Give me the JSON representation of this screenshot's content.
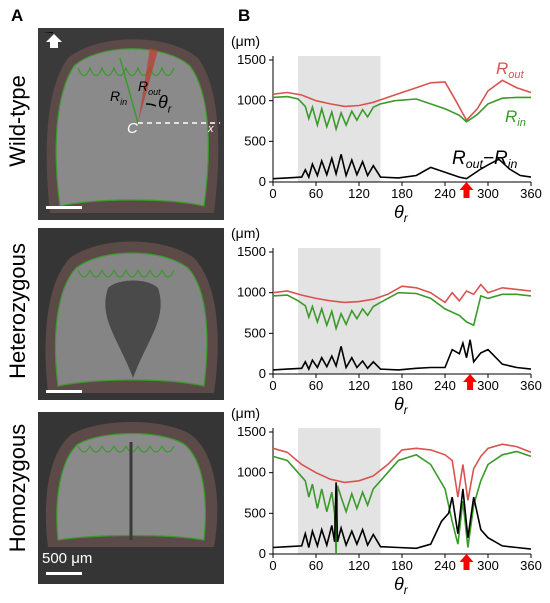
{
  "panel_labels": {
    "a": "A",
    "b": "B"
  },
  "rows": [
    {
      "label": "Wild-type"
    },
    {
      "label": "Heterozygous"
    },
    {
      "label": "Homozygous"
    }
  ],
  "image_annotations": {
    "r_out": "R",
    "r_out_sub": "out",
    "r_in": "R",
    "r_in_sub": "in",
    "theta": "θ",
    "theta_sub": "r",
    "center": "C",
    "x_axis": "x",
    "scale_bar": "500 μm"
  },
  "colors": {
    "r_out": "#d9534f",
    "r_in": "#3a9a2a",
    "diff": "#000000",
    "shade": "#e3e3e3",
    "arrow": "#ff0000"
  },
  "chart_data": [
    {
      "type": "line",
      "title": "Wild-type",
      "ylabel": "(μm)",
      "xlabel": "θr",
      "xlim": [
        0,
        360
      ],
      "ylim": [
        0,
        1500
      ],
      "xticks": [
        0,
        60,
        120,
        180,
        240,
        300,
        360
      ],
      "yticks": [
        0,
        500,
        1000,
        1500
      ],
      "shaded_region": [
        35,
        150
      ],
      "arrow_x": 270,
      "series_labels": {
        "r_out": "Rout",
        "r_in": "Rin",
        "diff": "Rout−Rin"
      },
      "series": [
        {
          "name": "Rout",
          "x": [
            0,
            20,
            40,
            60,
            80,
            100,
            120,
            140,
            160,
            180,
            200,
            220,
            240,
            255,
            270,
            285,
            300,
            320,
            340,
            360
          ],
          "values": [
            1080,
            1100,
            1070,
            1000,
            960,
            930,
            940,
            980,
            1040,
            1100,
            1160,
            1220,
            1230,
            1000,
            760,
            900,
            1120,
            1250,
            1160,
            1100
          ]
        },
        {
          "name": "Rin",
          "x": [
            0,
            20,
            35,
            45,
            50,
            55,
            62,
            68,
            75,
            82,
            88,
            95,
            102,
            110,
            117,
            125,
            132,
            140,
            150,
            170,
            200,
            240,
            260,
            270,
            285,
            300,
            320,
            340,
            360
          ],
          "values": [
            1040,
            1050,
            1020,
            930,
            780,
            920,
            700,
            900,
            680,
            860,
            650,
            850,
            700,
            870,
            760,
            890,
            800,
            920,
            960,
            1000,
            1020,
            900,
            820,
            740,
            830,
            960,
            1030,
            1040,
            1040
          ]
        },
        {
          "name": "Rout−Rin",
          "x": [
            0,
            20,
            40,
            45,
            50,
            55,
            62,
            68,
            75,
            82,
            88,
            95,
            102,
            110,
            117,
            125,
            132,
            140,
            150,
            175,
            200,
            220,
            240,
            260,
            270,
            290,
            300,
            315,
            330,
            345,
            360
          ],
          "values": [
            40,
            50,
            60,
            150,
            60,
            220,
            80,
            260,
            90,
            290,
            100,
            340,
            80,
            270,
            90,
            250,
            80,
            200,
            60,
            50,
            80,
            180,
            120,
            60,
            40,
            160,
            210,
            280,
            160,
            80,
            60
          ]
        }
      ]
    },
    {
      "type": "line",
      "title": "Heterozygous",
      "ylabel": "(μm)",
      "xlabel": "θr",
      "xlim": [
        0,
        360
      ],
      "ylim": [
        0,
        1500
      ],
      "xticks": [
        0,
        60,
        120,
        180,
        240,
        300,
        360
      ],
      "yticks": [
        0,
        500,
        1000,
        1500
      ],
      "shaded_region": [
        35,
        150
      ],
      "arrow_x": 275,
      "series": [
        {
          "name": "Rout",
          "x": [
            0,
            20,
            40,
            60,
            80,
            100,
            120,
            140,
            160,
            180,
            200,
            220,
            240,
            250,
            260,
            270,
            280,
            290,
            300,
            320,
            340,
            360
          ],
          "values": [
            1000,
            1020,
            970,
            930,
            900,
            880,
            890,
            920,
            980,
            1080,
            1060,
            1000,
            880,
            1000,
            900,
            1020,
            980,
            1100,
            1000,
            1060,
            1040,
            1020
          ]
        },
        {
          "name": "Rin",
          "x": [
            0,
            20,
            35,
            45,
            50,
            55,
            62,
            68,
            75,
            82,
            88,
            95,
            102,
            110,
            117,
            125,
            132,
            140,
            150,
            175,
            200,
            220,
            240,
            260,
            270,
            280,
            290,
            300,
            320,
            340,
            360
          ],
          "values": [
            960,
            970,
            900,
            840,
            700,
            830,
            640,
            800,
            600,
            770,
            560,
            740,
            610,
            780,
            680,
            800,
            720,
            830,
            880,
            1000,
            990,
            930,
            800,
            720,
            640,
            600,
            960,
            930,
            980,
            980,
            960
          ]
        },
        {
          "name": "Rout−Rin",
          "x": [
            0,
            20,
            40,
            45,
            50,
            55,
            62,
            68,
            75,
            82,
            88,
            95,
            102,
            110,
            117,
            125,
            132,
            140,
            150,
            175,
            200,
            220,
            240,
            250,
            260,
            265,
            270,
            275,
            280,
            290,
            300,
            320,
            340,
            360
          ],
          "values": [
            50,
            60,
            70,
            150,
            60,
            170,
            80,
            200,
            90,
            220,
            100,
            340,
            80,
            200,
            80,
            160,
            70,
            150,
            60,
            50,
            70,
            80,
            80,
            300,
            250,
            380,
            200,
            420,
            150,
            260,
            300,
            120,
            80,
            60
          ]
        }
      ]
    },
    {
      "type": "line",
      "title": "Homozygous",
      "ylabel": "(μm)",
      "xlabel": "θr",
      "xlim": [
        0,
        360
      ],
      "ylim": [
        0,
        1500
      ],
      "xticks": [
        0,
        60,
        120,
        180,
        240,
        300,
        360
      ],
      "yticks": [
        0,
        500,
        1000,
        1500
      ],
      "shaded_region": [
        35,
        150
      ],
      "arrow_x": 270,
      "series": [
        {
          "name": "Rout",
          "x": [
            0,
            20,
            40,
            60,
            80,
            100,
            120,
            140,
            160,
            180,
            200,
            220,
            240,
            250,
            258,
            265,
            272,
            280,
            290,
            300,
            320,
            340,
            360
          ],
          "values": [
            1300,
            1250,
            1100,
            1000,
            920,
            880,
            900,
            960,
            1100,
            1280,
            1300,
            1280,
            1220,
            1150,
            700,
            1100,
            660,
            1050,
            1200,
            1300,
            1350,
            1320,
            1250
          ]
        },
        {
          "name": "Rin",
          "x": [
            0,
            20,
            35,
            45,
            50,
            55,
            62,
            68,
            75,
            82,
            86,
            88,
            90,
            95,
            102,
            110,
            117,
            125,
            132,
            140,
            150,
            175,
            200,
            220,
            240,
            250,
            258,
            265,
            272,
            280,
            290,
            300,
            320,
            340,
            360
          ],
          "values": [
            1200,
            1150,
            1000,
            900,
            700,
            860,
            560,
            800,
            520,
            760,
            500,
            0,
            840,
            700,
            520,
            740,
            560,
            760,
            600,
            800,
            900,
            1150,
            1220,
            1100,
            800,
            400,
            120,
            650,
            80,
            600,
            900,
            1100,
            1220,
            1260,
            1200
          ]
        },
        {
          "name": "Rout−Rin",
          "x": [
            0,
            20,
            40,
            45,
            50,
            55,
            62,
            68,
            75,
            82,
            86,
            88,
            90,
            95,
            102,
            110,
            117,
            125,
            132,
            140,
            150,
            175,
            200,
            220,
            235,
            245,
            250,
            258,
            265,
            272,
            280,
            290,
            300,
            320,
            340,
            360
          ],
          "values": [
            80,
            90,
            100,
            250,
            80,
            280,
            100,
            300,
            110,
            350,
            150,
            880,
            150,
            320,
            110,
            280,
            120,
            300,
            110,
            240,
            90,
            80,
            70,
            120,
            400,
            500,
            700,
            250,
            800,
            200,
            700,
            300,
            200,
            100,
            80,
            60
          ]
        }
      ]
    }
  ]
}
